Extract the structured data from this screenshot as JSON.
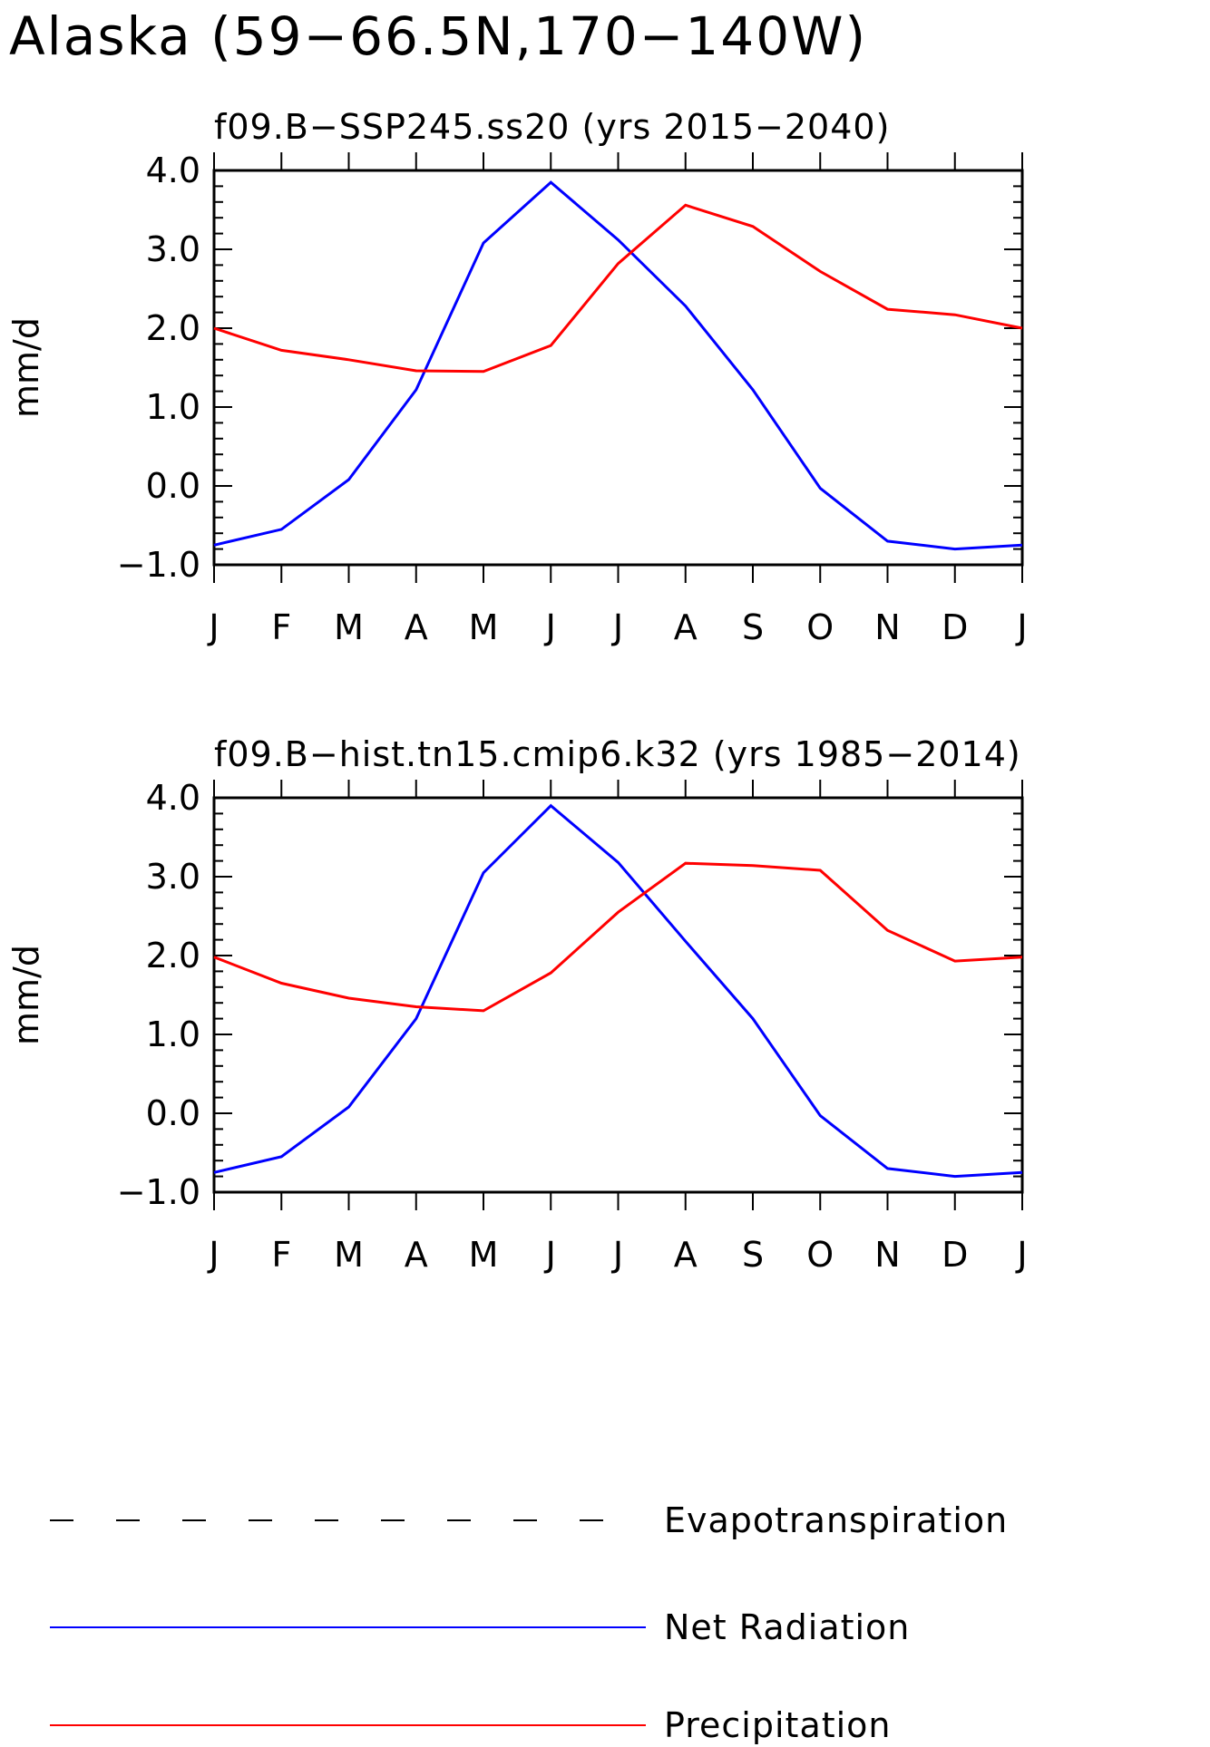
{
  "figure_title": "Alaska (59−66.5N,170−140W)",
  "colors": {
    "net_radiation": "#0000ff",
    "precipitation": "#ff0000",
    "evapotranspiration": "#000000",
    "axes": "#000000",
    "background": "#ffffff"
  },
  "legend": [
    {
      "label": "Evapotranspiration",
      "color": "#000000",
      "style": "dashed"
    },
    {
      "label": "Net Radiation",
      "color": "#0000ff",
      "style": "solid"
    },
    {
      "label": "Precipitation",
      "color": "#ff0000",
      "style": "solid"
    }
  ],
  "chart_data": [
    {
      "type": "line",
      "title": "f09.B−SSP245.ss20 (yrs 2015−2040)",
      "xlabel": "",
      "ylabel": "mm/d",
      "ylim": [
        -1.0,
        4.0
      ],
      "yticks": [
        "−1.0",
        "0.0",
        "1.0",
        "2.0",
        "3.0",
        "4.0"
      ],
      "categories": [
        "J",
        "F",
        "M",
        "A",
        "M",
        "J",
        "J",
        "A",
        "S",
        "O",
        "N",
        "D",
        "J"
      ],
      "grid": false,
      "series": [
        {
          "name": "Net Radiation",
          "color": "#0000ff",
          "values": [
            -0.75,
            -0.55,
            0.08,
            1.22,
            3.08,
            3.85,
            3.12,
            2.28,
            1.22,
            -0.03,
            -0.7,
            -0.8,
            -0.75
          ]
        },
        {
          "name": "Precipitation",
          "color": "#ff0000",
          "values": [
            2.0,
            1.72,
            1.6,
            1.46,
            1.45,
            1.78,
            2.82,
            3.56,
            3.29,
            2.72,
            2.24,
            2.17,
            2.0
          ]
        }
      ]
    },
    {
      "type": "line",
      "title": "f09.B−hist.tn15.cmip6.k32 (yrs 1985−2014)",
      "xlabel": "",
      "ylabel": "mm/d",
      "ylim": [
        -1.0,
        4.0
      ],
      "yticks": [
        "−1.0",
        "0.0",
        "1.0",
        "2.0",
        "3.0",
        "4.0"
      ],
      "categories": [
        "J",
        "F",
        "M",
        "A",
        "M",
        "J",
        "J",
        "A",
        "S",
        "O",
        "N",
        "D",
        "J"
      ],
      "grid": false,
      "series": [
        {
          "name": "Net Radiation",
          "color": "#0000ff",
          "values": [
            -0.75,
            -0.55,
            0.08,
            1.2,
            3.05,
            3.9,
            3.18,
            2.18,
            1.2,
            -0.03,
            -0.7,
            -0.8,
            -0.75
          ]
        },
        {
          "name": "Precipitation",
          "color": "#ff0000",
          "values": [
            1.98,
            1.65,
            1.46,
            1.35,
            1.3,
            1.78,
            2.55,
            3.17,
            3.14,
            3.08,
            2.32,
            1.93,
            1.98
          ]
        }
      ]
    }
  ]
}
